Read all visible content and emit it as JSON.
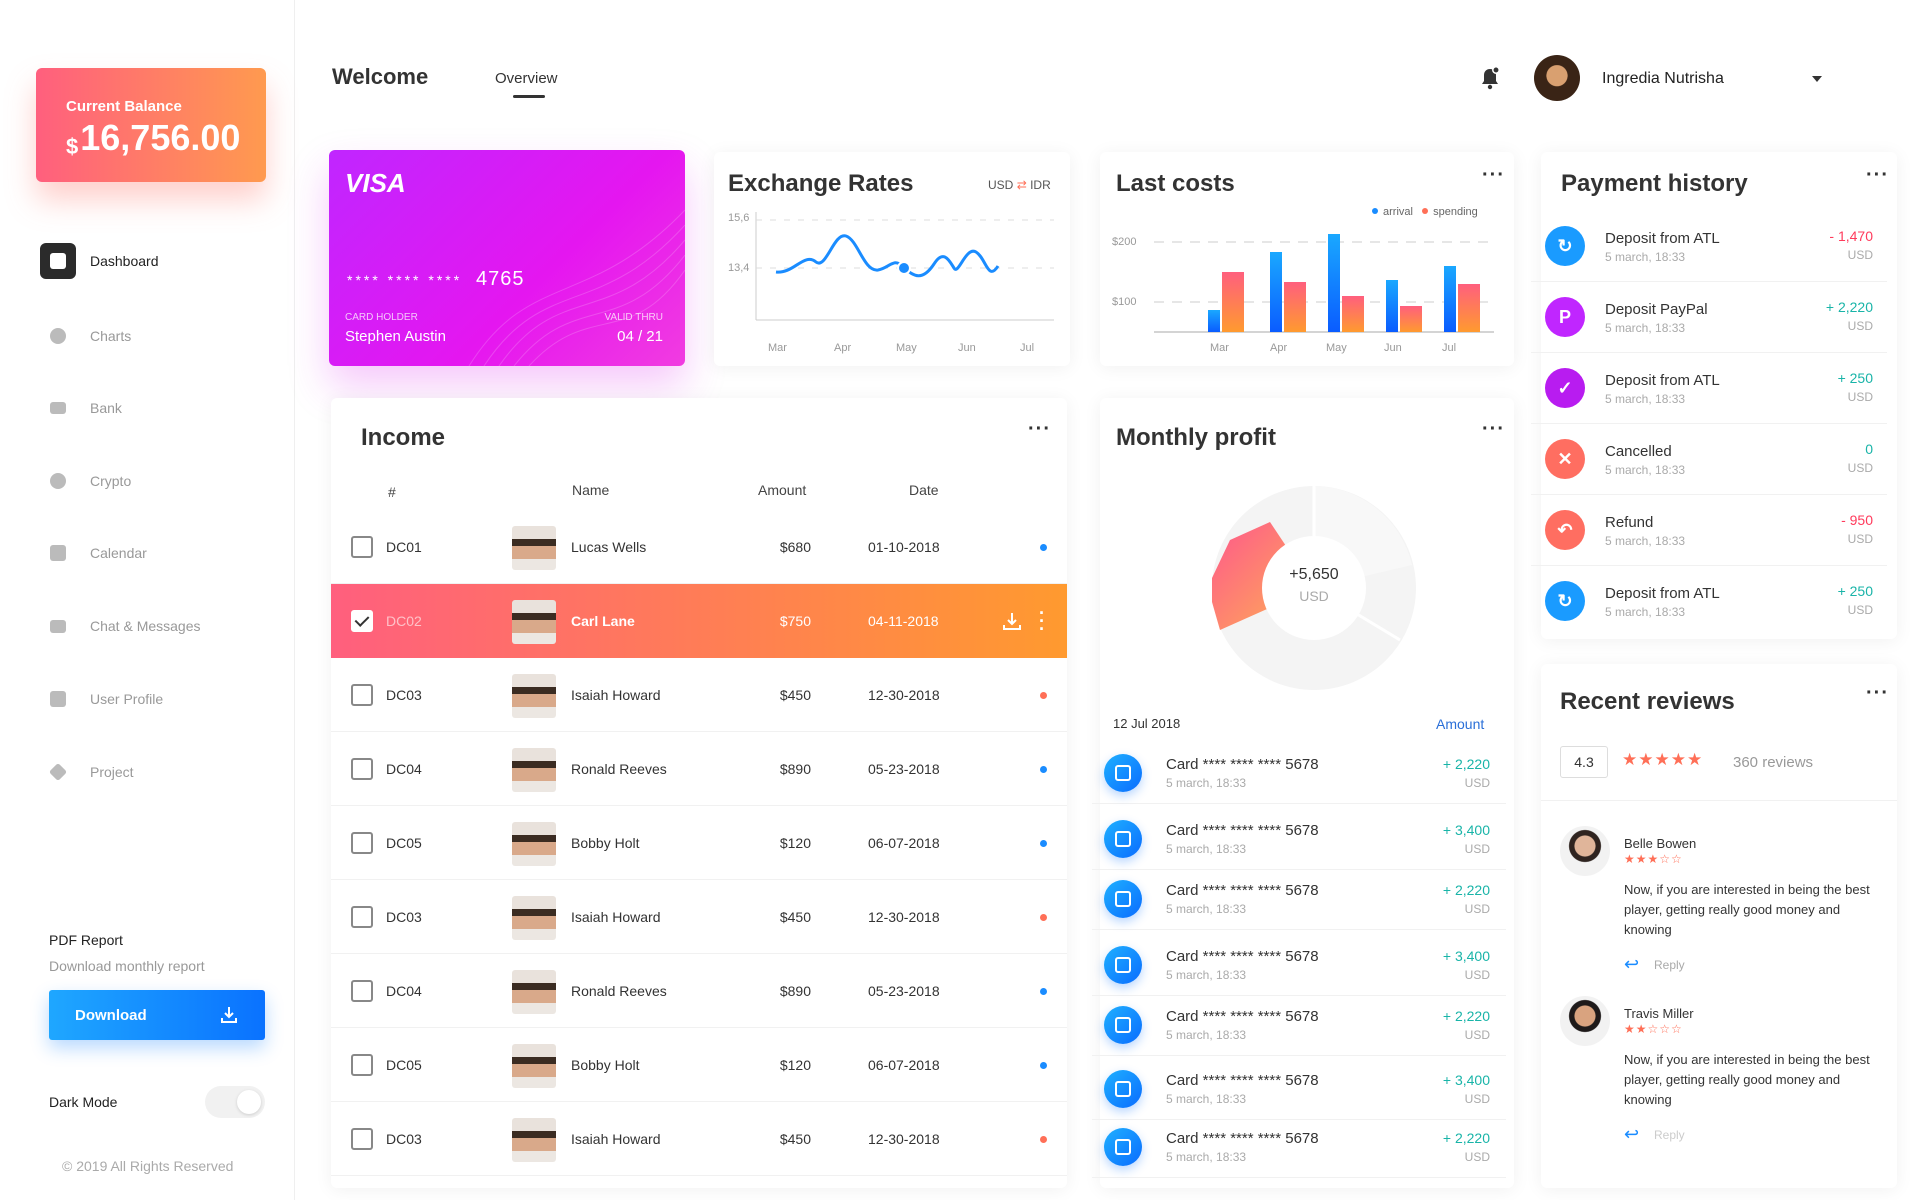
{
  "sidebar": {
    "balance_label": "Current Balance",
    "balance_currency": "$",
    "balance_amount": "16,756.00",
    "nav": [
      {
        "label": "Dashboard",
        "icon": "dashboard-icon",
        "active": true
      },
      {
        "label": "Charts",
        "icon": "pie-chart-icon"
      },
      {
        "label": "Bank",
        "icon": "bank-card-icon"
      },
      {
        "label": "Crypto",
        "icon": "bitcoin-icon"
      },
      {
        "label": "Calendar",
        "icon": "calendar-icon"
      },
      {
        "label": "Chat & Messages",
        "icon": "chat-icon"
      },
      {
        "label": "User Profile",
        "icon": "user-profile-icon"
      },
      {
        "label": "Project",
        "icon": "layers-icon"
      }
    ],
    "pdf_title": "PDF Report",
    "pdf_subtitle": "Download monthly report",
    "download_label": "Download",
    "dark_mode_label": "Dark Mode",
    "copyright": "© 2019 All Rights Reserved"
  },
  "header": {
    "title": "Welcome",
    "tab": "Overview",
    "user_name": "Ingredia Nutrisha"
  },
  "visa_card": {
    "brand": "VISA",
    "masked": "**** **** ****",
    "last4": "4765",
    "holder_label": "CARD HOLDER",
    "holder_name": "Stephen Austin",
    "valid_label": "VALID THRU",
    "valid_date": "04 / 21"
  },
  "exchange": {
    "title": "Exchange Rates",
    "from": "USD",
    "to": "IDR",
    "y_ticks": [
      "15,6",
      "13,4"
    ],
    "months": [
      "Mar",
      "Apr",
      "May",
      "Jun",
      "Jul"
    ]
  },
  "last_costs": {
    "title": "Last costs",
    "legend_arrival": "arrival",
    "legend_spending": "spending",
    "y_ticks": [
      "$200",
      "$100"
    ],
    "months": [
      "Mar",
      "Apr",
      "May",
      "Jun",
      "Jul"
    ]
  },
  "income": {
    "title": "Income",
    "headers": {
      "num": "#",
      "name": "Name",
      "amount": "Amount",
      "date": "Date"
    },
    "rows": [
      {
        "id": "DC01",
        "name": "Lucas Wells",
        "amount": "$680",
        "date": "01-10-2018",
        "status": "blue"
      },
      {
        "id": "DC02",
        "name": "Carl Lane",
        "amount": "$750",
        "date": "04-11-2018",
        "status": "selected"
      },
      {
        "id": "DC03",
        "name": "Isaiah Howard",
        "amount": "$450",
        "date": "12-30-2018",
        "status": "red"
      },
      {
        "id": "DC04",
        "name": "Ronald Reeves",
        "amount": "$890",
        "date": "05-23-2018",
        "status": "blue"
      },
      {
        "id": "DC05",
        "name": "Bobby Holt",
        "amount": "$120",
        "date": "06-07-2018",
        "status": "blue"
      },
      {
        "id": "DC03",
        "name": "Isaiah Howard",
        "amount": "$450",
        "date": "12-30-2018",
        "status": "red"
      },
      {
        "id": "DC04",
        "name": "Ronald Reeves",
        "amount": "$890",
        "date": "05-23-2018",
        "status": "blue"
      },
      {
        "id": "DC05",
        "name": "Bobby Holt",
        "amount": "$120",
        "date": "06-07-2018",
        "status": "blue"
      },
      {
        "id": "DC03",
        "name": "Isaiah Howard",
        "amount": "$450",
        "date": "12-30-2018",
        "status": "red"
      }
    ]
  },
  "monthly_profit": {
    "title": "Monthly profit",
    "percent": "13%",
    "value": "+5,650",
    "unit": "USD",
    "date": "12 Jul 2018",
    "amount_label": "Amount",
    "rows": [
      {
        "card": "Card **** **** **** 5678",
        "time": "5 march, 18:33",
        "value": "+ 2,220",
        "unit": "USD"
      },
      {
        "card": "Card **** **** **** 5678",
        "time": "5 march, 18:33",
        "value": "+ 3,400",
        "unit": "USD"
      },
      {
        "card": "Card **** **** **** 5678",
        "time": "5 march, 18:33",
        "value": "+ 2,220",
        "unit": "USD"
      },
      {
        "card": "Card **** **** **** 5678",
        "time": "5 march, 18:33",
        "value": "+ 3,400",
        "unit": "USD"
      },
      {
        "card": "Card **** **** **** 5678",
        "time": "5 march, 18:33",
        "value": "+ 2,220",
        "unit": "USD"
      },
      {
        "card": "Card **** **** **** 5678",
        "time": "5 march, 18:33",
        "value": "+ 3,400",
        "unit": "USD"
      },
      {
        "card": "Card **** **** **** 5678",
        "time": "5 march, 18:33",
        "value": "+ 2,220",
        "unit": "USD"
      }
    ]
  },
  "payment_history": {
    "title": "Payment history",
    "rows": [
      {
        "title": "Deposit from ATL",
        "time": "5 march, 18:33",
        "value": "- 1,470",
        "unit": "USD",
        "color": "#ff3b5c",
        "icon_color": "#1a9bff",
        "glyph": "↻"
      },
      {
        "title": "Deposit PayPal",
        "time": "5 march, 18:33",
        "value": "+ 2,220",
        "unit": "USD",
        "color": "#19b4a8",
        "icon_color": "#c026ff",
        "glyph": "P"
      },
      {
        "title": "Deposit from ATL",
        "time": "5 march, 18:33",
        "value": "+ 250",
        "unit": "USD",
        "color": "#19b4a8",
        "icon_color": "#b81cf0",
        "glyph": "✓"
      },
      {
        "title": "Cancelled",
        "time": "5 march, 18:33",
        "value": "0",
        "unit": "USD",
        "color": "#19b4a8",
        "icon_color": "#ff6e61",
        "glyph": "✕"
      },
      {
        "title": "Refund",
        "time": "5 march, 18:33",
        "value": "- 950",
        "unit": "USD",
        "color": "#ff3b5c",
        "icon_color": "#ff6e61",
        "glyph": "↶"
      },
      {
        "title": "Deposit from ATL",
        "time": "5 march, 18:33",
        "value": "+ 250",
        "unit": "USD",
        "color": "#19b4a8",
        "icon_color": "#1a9bff",
        "glyph": "↻"
      }
    ]
  },
  "recent_reviews": {
    "title": "Recent reviews",
    "rating": "4.3",
    "stars": "★★★★★",
    "count": "360 reviews",
    "reviews": [
      {
        "name": "Belle Bowen",
        "stars": "★★★☆☆",
        "text": "Now, if you are interested in being the best player, getting really good money and knowing",
        "reply": "Reply"
      },
      {
        "name": "Travis Miller",
        "stars": "★★☆☆☆",
        "text": "Now, if you are interested in being the best player, getting really good money and knowing",
        "reply": "Reply"
      }
    ]
  }
}
